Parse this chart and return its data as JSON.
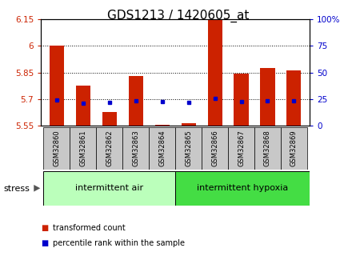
{
  "title": "GDS1213 / 1420605_at",
  "samples": [
    "GSM32860",
    "GSM32861",
    "GSM32862",
    "GSM32863",
    "GSM32864",
    "GSM32865",
    "GSM32866",
    "GSM32867",
    "GSM32868",
    "GSM32869"
  ],
  "red_values": [
    6.0,
    5.775,
    5.625,
    5.83,
    5.556,
    5.565,
    6.145,
    5.845,
    5.875,
    5.86
  ],
  "blue_values": [
    5.695,
    5.675,
    5.68,
    5.69,
    5.685,
    5.683,
    5.703,
    5.685,
    5.69,
    5.69
  ],
  "ylim": [
    5.55,
    6.15
  ],
  "yticks": [
    5.55,
    5.7,
    5.85,
    6.0,
    6.15
  ],
  "ytick_labels": [
    "5.55",
    "5.7",
    "5.85",
    "6",
    "6.15"
  ],
  "y2ticks": [
    0,
    25,
    50,
    75,
    100
  ],
  "y2tick_labels": [
    "0",
    "25",
    "50",
    "75",
    "100%"
  ],
  "bar_bottom": 5.55,
  "bar_color": "#cc2200",
  "dot_color": "#0000cc",
  "grid_color": "#000000",
  "group1_label": "intermittent air",
  "group2_label": "intermittent hypoxia",
  "stress_label": "stress",
  "legend1": "transformed count",
  "legend2": "percentile rank within the sample",
  "tick_bg": "#c8c8c8",
  "group_bg1": "#bbffbb",
  "group_bg2": "#44dd44",
  "title_fontsize": 11,
  "axis_label_color_left": "#cc2200",
  "axis_label_color_right": "#0000cc"
}
